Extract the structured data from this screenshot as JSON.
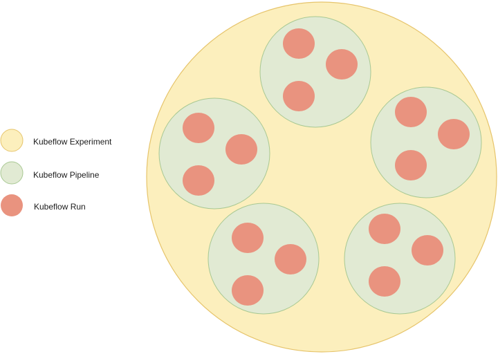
{
  "legend": {
    "items": [
      {
        "key": "experiment",
        "label": "Kubeflow Experiment",
        "fill": "#fcefbd",
        "stroke": "#e6c46b"
      },
      {
        "key": "pipeline",
        "label": "Kubeflow Pipeline",
        "fill": "#e1ead3",
        "stroke": "#a8c892"
      },
      {
        "key": "run",
        "label": "Kubeflow Run",
        "fill": "#e9937f",
        "stroke": "#e9937f"
      }
    ]
  },
  "diagram": {
    "experiment_count": 1,
    "pipelines_per_experiment": 5,
    "runs_per_pipeline": 3
  }
}
